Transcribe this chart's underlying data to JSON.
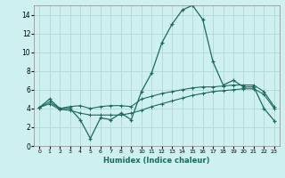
{
  "xlabel": "Humidex (Indice chaleur)",
  "bg_color": "#cff0f0",
  "grid_color": "#b0d8d8",
  "line_color": "#1a6b5a",
  "x": [
    0,
    1,
    2,
    3,
    4,
    5,
    6,
    7,
    8,
    9,
    10,
    11,
    12,
    13,
    14,
    15,
    16,
    17,
    18,
    19,
    20,
    21,
    22,
    23
  ],
  "y_main": [
    4.1,
    5.0,
    4.0,
    4.0,
    2.8,
    0.8,
    3.0,
    2.8,
    3.5,
    2.8,
    5.8,
    7.8,
    11.0,
    13.0,
    14.5,
    15.0,
    13.5,
    9.0,
    6.5,
    7.0,
    6.3,
    6.3,
    4.0,
    2.7
  ],
  "y_low": [
    4.1,
    4.5,
    3.9,
    3.8,
    3.5,
    3.3,
    3.3,
    3.3,
    3.3,
    3.5,
    3.8,
    4.2,
    4.5,
    4.8,
    5.1,
    5.4,
    5.6,
    5.8,
    5.9,
    6.0,
    6.1,
    6.1,
    5.5,
    4.0
  ],
  "y_high": [
    4.1,
    4.7,
    4.0,
    4.2,
    4.3,
    4.0,
    4.2,
    4.3,
    4.3,
    4.2,
    5.0,
    5.3,
    5.6,
    5.8,
    6.0,
    6.2,
    6.3,
    6.3,
    6.4,
    6.5,
    6.5,
    6.5,
    5.8,
    4.2
  ],
  "ylim": [
    0,
    15
  ],
  "xlim": [
    -0.5,
    23.5
  ],
  "yticks": [
    0,
    2,
    4,
    6,
    8,
    10,
    12,
    14
  ],
  "xticks": [
    0,
    1,
    2,
    3,
    4,
    5,
    6,
    7,
    8,
    9,
    10,
    11,
    12,
    13,
    14,
    15,
    16,
    17,
    18,
    19,
    20,
    21,
    22,
    23
  ]
}
